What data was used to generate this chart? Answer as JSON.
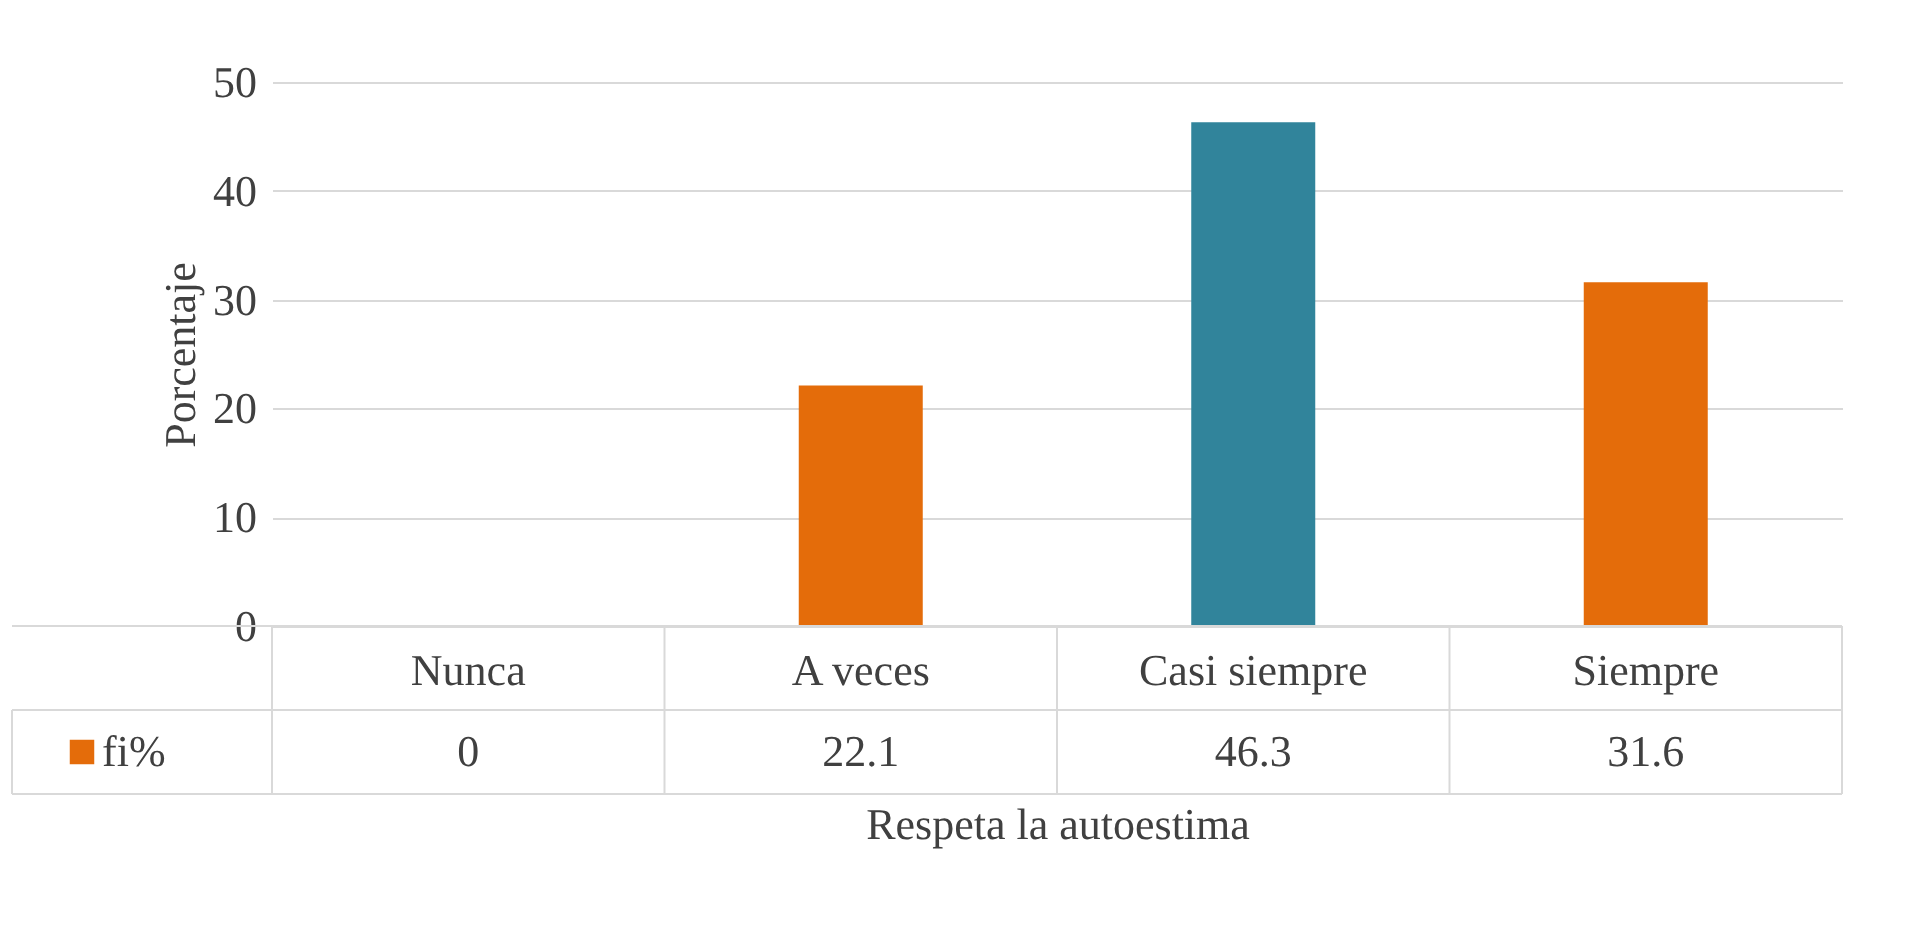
{
  "chart_data": {
    "type": "bar",
    "xlabel": "Respeta la autoestima",
    "ylabel": "Porcentaje",
    "categories": [
      "Nunca",
      "A veces",
      "Casi siempre",
      "Siempre"
    ],
    "series": [
      {
        "name": "fi%",
        "colors": [
          "#e46c0a",
          "#e46c0a",
          "#31849b",
          "#e46c0a"
        ],
        "values": [
          0,
          22.1,
          46.3,
          31.6
        ]
      }
    ],
    "ylim": [
      0,
      50
    ],
    "yticks": [
      0,
      10,
      20,
      30,
      40,
      50
    ],
    "grid": "y",
    "data_labels": true,
    "legend": "bottom left"
  }
}
